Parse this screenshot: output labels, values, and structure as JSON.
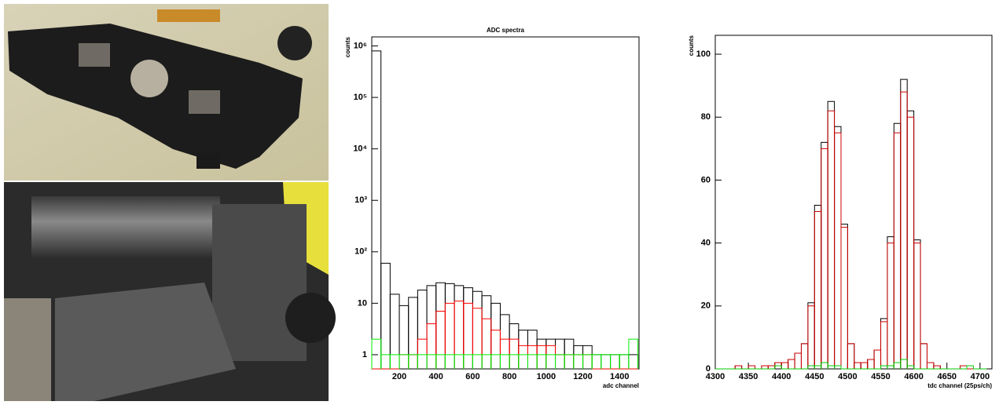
{
  "chart_data": [
    {
      "type": "histogram",
      "title": "ADC spectra",
      "xlabel": "adc channel",
      "ylabel": "counts",
      "log_y": true,
      "xlim": [
        50,
        1506
      ],
      "ylim": [
        0.53,
        1500000
      ],
      "xticks": [
        200,
        400,
        600,
        800,
        1000,
        1200,
        1400
      ],
      "yticks": [
        1,
        10,
        {
          "value": 100,
          "label": "10²"
        },
        {
          "value": 1000,
          "label": "10³"
        },
        {
          "value": 10000,
          "label": "10⁴"
        },
        {
          "value": 100000,
          "label": "10⁵"
        },
        {
          "value": 1000000,
          "label": "10⁶"
        }
      ],
      "bins": [
        50,
        100,
        150,
        200,
        250,
        300,
        350,
        400,
        450,
        500,
        550,
        600,
        650,
        700,
        750,
        800,
        850,
        900,
        950,
        1000,
        1050,
        1100,
        1150,
        1200,
        1250,
        1300,
        1350,
        1400,
        1450,
        1500
      ],
      "series": [
        {
          "color": "#000000",
          "values": [
            800000,
            60,
            15,
            9,
            13,
            18,
            22,
            25,
            24,
            22,
            20,
            17,
            14,
            10,
            6,
            4,
            3,
            3,
            2,
            2,
            2,
            2,
            1.5,
            1.5,
            1,
            1,
            1,
            1,
            1
          ]
        },
        {
          "color": "#ff0000",
          "values": [
            0,
            0,
            0,
            1,
            1,
            2,
            4,
            7,
            10,
            11,
            10,
            8,
            5,
            3,
            2,
            2,
            1.5,
            1.5,
            1.5,
            1.5,
            1,
            1,
            1,
            1,
            0,
            0,
            0,
            0,
            0
          ]
        },
        {
          "color": "#00ee00",
          "values": [
            2,
            1,
            1,
            1,
            1,
            1,
            1,
            1,
            1,
            1,
            1,
            1,
            1,
            1,
            1,
            1,
            1,
            1,
            1,
            1,
            1,
            1,
            1,
            1,
            1,
            1,
            1,
            1,
            2
          ]
        }
      ]
    },
    {
      "type": "histogram",
      "xlabel": "tdc channel (25ps/ch)",
      "ylabel": "counts",
      "log_y": false,
      "xlim": [
        4300,
        4718
      ],
      "ylim": [
        0,
        106
      ],
      "xticks": [
        4300,
        4350,
        4400,
        4450,
        4500,
        4550,
        4600,
        4650,
        4700
      ],
      "yticks": [
        0,
        20,
        40,
        60,
        80,
        100
      ],
      "bins": [
        4300,
        4310,
        4320,
        4330,
        4340,
        4350,
        4360,
        4370,
        4380,
        4390,
        4400,
        4410,
        4420,
        4430,
        4440,
        4450,
        4460,
        4470,
        4480,
        4490,
        4500,
        4510,
        4520,
        4530,
        4540,
        4550,
        4560,
        4570,
        4580,
        4590,
        4600,
        4610,
        4620,
        4630,
        4640,
        4650,
        4660,
        4670,
        4680,
        4690,
        4700,
        4710
      ],
      "series": [
        {
          "color": "#000000",
          "values": [
            0,
            0,
            0,
            1,
            0,
            1,
            0,
            1,
            1,
            2,
            2,
            3,
            5,
            8,
            21,
            52,
            72,
            85,
            77,
            46,
            8,
            2,
            2,
            3,
            6,
            16,
            42,
            78,
            92,
            82,
            41,
            8,
            2,
            1,
            0,
            0,
            0,
            1,
            0,
            0,
            0
          ]
        },
        {
          "color": "#cc0000",
          "values": [
            0,
            0,
            0,
            1,
            0,
            1,
            0,
            1,
            1,
            2,
            2,
            3,
            5,
            8,
            20,
            50,
            70,
            82,
            75,
            45,
            8,
            2,
            2,
            3,
            6,
            15,
            40,
            75,
            88,
            80,
            40,
            8,
            2,
            1,
            0,
            0,
            0,
            1,
            0,
            0,
            0
          ]
        },
        {
          "color": "#00cc00",
          "values": [
            0,
            0,
            0,
            0,
            0,
            0,
            0,
            0,
            0,
            1,
            0,
            0,
            0,
            0,
            1,
            1,
            2,
            1,
            1,
            0,
            0,
            0,
            0,
            0,
            0,
            1,
            1,
            2,
            3,
            1,
            0,
            0,
            0,
            0,
            0,
            0,
            0,
            0,
            1,
            0,
            0
          ]
        }
      ]
    }
  ]
}
